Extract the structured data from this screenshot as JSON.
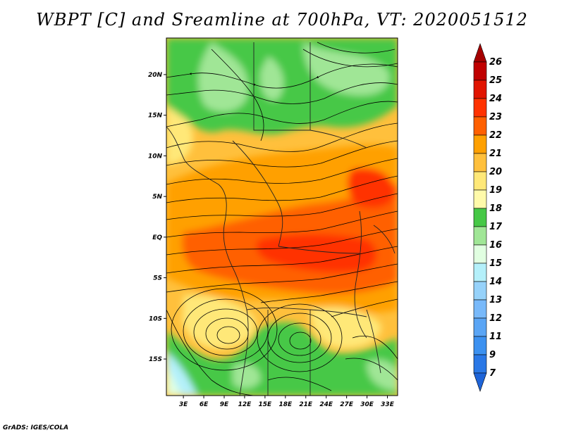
{
  "title": "WBPT [C] and Sreamline at 700hPa, VT: 2020051512",
  "credit": "GrADS: IGES/COLA",
  "map": {
    "lat_labels": [
      "20N",
      "15N",
      "10N",
      "5N",
      "EQ",
      "5S",
      "10S",
      "15S"
    ],
    "lon_labels": [
      "3E",
      "6E",
      "9E",
      "12E",
      "15E",
      "18E",
      "21E",
      "24E",
      "27E",
      "30E",
      "33E"
    ],
    "lon_range": [
      0.5,
      34.5
    ],
    "lat_range": [
      -19.5,
      24.5
    ],
    "features": {
      "anticyclone_centers": [
        "southwest Angola / Namibia",
        "Zambia / Botswana"
      ],
      "cool_moist_regions": [
        "Sahel north of 12N (green)",
        "southern Africa south of 12S (green)"
      ],
      "warm_regions": [
        "equatorial band 10N to 10S (orange/red)"
      ]
    }
  },
  "colorbar": {
    "levels": [
      "7",
      "9",
      "11",
      "12",
      "13",
      "14",
      "15",
      "16",
      "17",
      "18",
      "19",
      "20",
      "21",
      "22",
      "23",
      "24",
      "25",
      "26"
    ],
    "colors": [
      "#1e64d8",
      "#2a78e6",
      "#3c91f0",
      "#5aa5f5",
      "#78b9fa",
      "#96d2fa",
      "#b4f0fa",
      "#e1ffe1",
      "#a0e696",
      "#46c846",
      "#fffaaa",
      "#ffe878",
      "#ffc03c",
      "#ffa000",
      "#ff6000",
      "#ff3200",
      "#e11400",
      "#c00000",
      "#a50000"
    ]
  }
}
